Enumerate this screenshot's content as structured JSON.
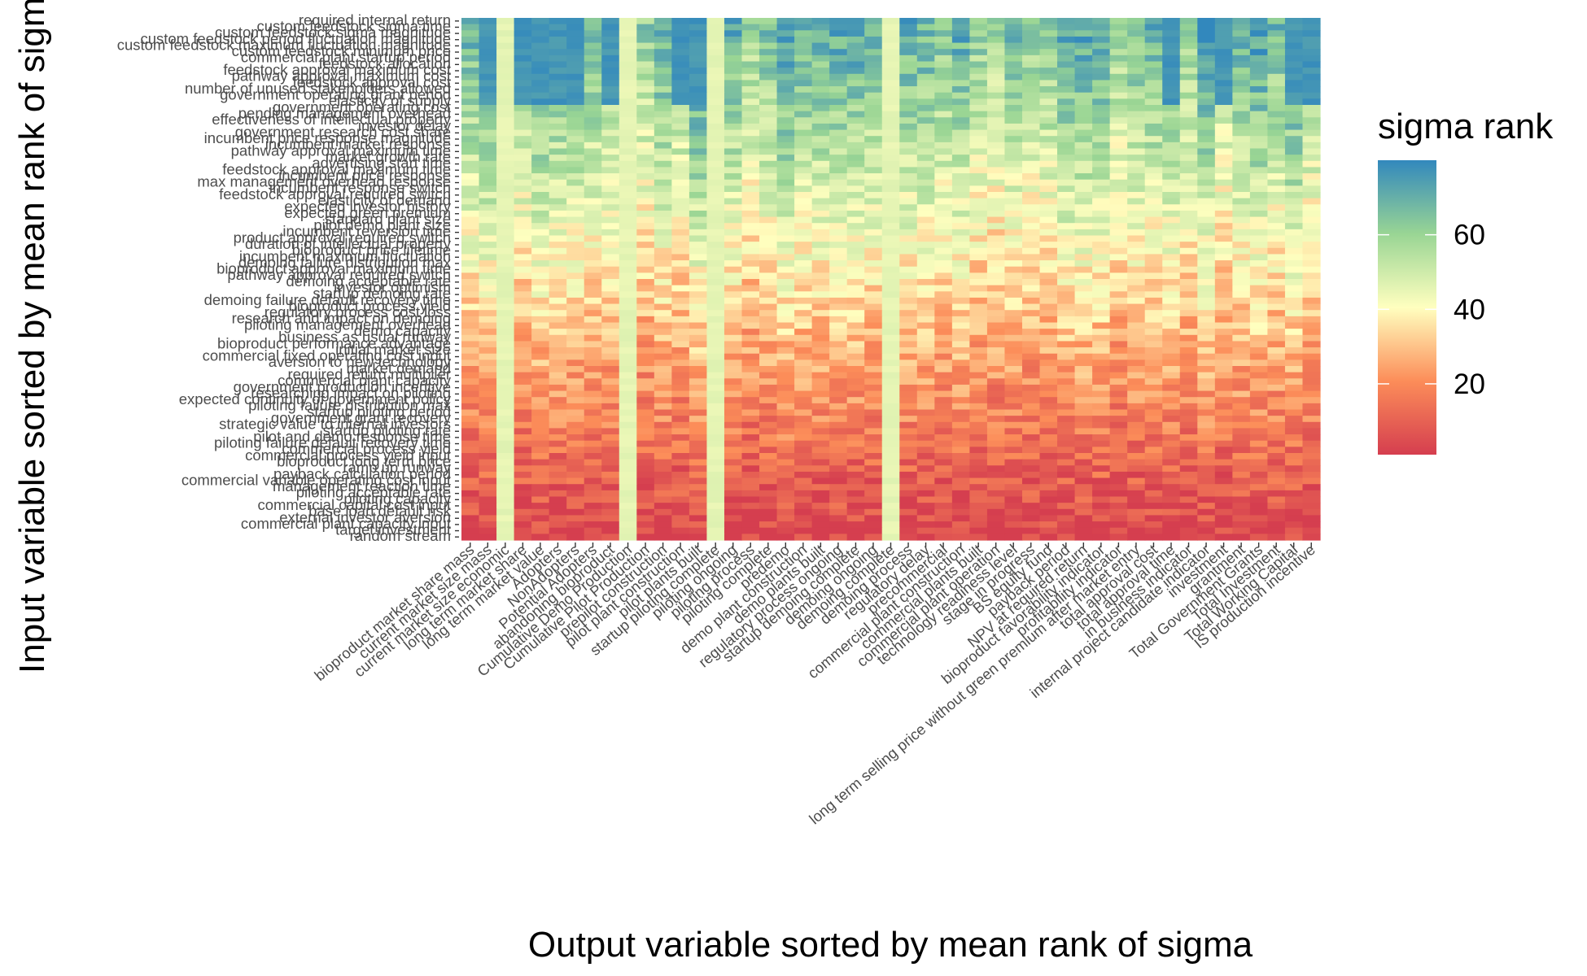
{
  "chart_data": {
    "type": "heatmap",
    "title": "",
    "xlabel": "Output variable sorted by mean rank of sigma",
    "ylabel": "Input variable sorted by mean rank of sigma",
    "legend": {
      "title": "sigma rank",
      "placement": "right",
      "breaks": [
        20,
        40,
        60
      ],
      "range": [
        1,
        80
      ]
    },
    "colors": {
      "low": "#d53e4f",
      "mid_low": "#fc8d59",
      "mid": "#ffffbf",
      "mid_high": "#99d594",
      "high": "#3288bd"
    },
    "y_tick_labels": [
      "required internal return",
      "custom feedstock sigma time",
      "custom feedstock sigma magnitude",
      "custom feedstock period fluctuation magnitude",
      "custom feedstock maximum fluctuation magnitude",
      "custom feedstock minimum price",
      "commercial plant startup period",
      "feedstock allocation",
      "feedstock approval maximum cost",
      "pathway approval maximum cost",
      "feedstock approval cost",
      "number of unused stakeholders allowed",
      "government operating grant period",
      "elasticity of supply",
      "government operating cost",
      "pending management overhead",
      "effectiveness of intellectual property",
      "investor delay",
      "government research cost share",
      "incumbent price response magnitude",
      "incumbent market response",
      "pathway approval maximum time",
      "market growth rate",
      "advertising start time",
      "feedstock approval maximum time",
      "incumbent price response",
      "max management overhead response",
      "incumbent response switch",
      "feedstock approval required switch",
      "elasticity of demand",
      "expected investor history",
      "expected green premium",
      "standard plant size",
      "pilot demo plant size",
      "incumbent reversion time",
      "product approval required switch",
      "duration of intellectual property",
      "bioproduct price lifetime",
      "incumbent maximum fluctuation",
      "demoing failure distribution max",
      "bioproduct approval maximum time",
      "pathway approval required switch",
      "demoing acceptable rate",
      "investor optimism",
      "startup demoing rate",
      "demoing failure default recovery time",
      "bioproduct process yield",
      "regulatory process cost loss",
      "research and impact on demoing",
      "piloting management overhead",
      "demo capacity",
      "business as usual runway",
      "bioproduct performance advantage",
      "initial market size",
      "commercial fixed operating cost input",
      "aversion to new technology",
      "market demand",
      "required return multiplier",
      "commercial plant capacity",
      "government production incentive",
      "researching impact on piloting",
      "expected continuity of government policy",
      "piloting failure distribution max",
      "startup piloting period",
      "government grant recovery",
      "strategic value to internal investors",
      "startup piloting rate",
      "pilot and demo response time",
      "piloting failure default recovery time",
      "commercial process yield",
      "commercial process yield input",
      "bioproduct long term price",
      "ramp up runway",
      "payback calculation period",
      "commercial variable operating cost input",
      "management reaction time",
      "piloting acceptable rate",
      "piloting capacity",
      "commercial capital cost input",
      "base loan default risk",
      "external investor aversion",
      "commercial plant capacity input",
      "target investment",
      "random stream"
    ],
    "x_tick_labels": [
      "bioproduct market share mass",
      "current market size mass",
      "current market size economic",
      "long term market share",
      "long term market value",
      "Adopters",
      "NonAdopters",
      "Potential Adopters",
      "abandoning bioproduct",
      "Cumulative Demo Production",
      "Cumulative Pilot Production",
      "prepilot construction",
      "pilot plant construction",
      "pilot plants built",
      "startup piloting complete",
      "piloting ongoing",
      "piloting process",
      "piloting complete",
      "predemo",
      "demo plant construction",
      "demo plants built",
      "regulatory process ongoing",
      "startup demoing complete",
      "demoing ongoing",
      "demoing complete",
      "demoing process",
      "regulatory delay",
      "precommercial",
      "commercial plant construction",
      "commercial plants built",
      "commercial plant operation",
      "technology readiness level",
      "stage in progress",
      "BS equity fund",
      "payback period",
      "NPV at required return",
      "bioproduct favorability indicator",
      "profitability indicator",
      "long term selling price without green premium after market entry",
      "total approval cost",
      "total approval time",
      "in business indicator",
      "internal project candidate indicator",
      "investment",
      "grantment",
      "Total Government Grants",
      "Total Investment",
      "Total Working Capital",
      "IS production incentive"
    ]
  }
}
